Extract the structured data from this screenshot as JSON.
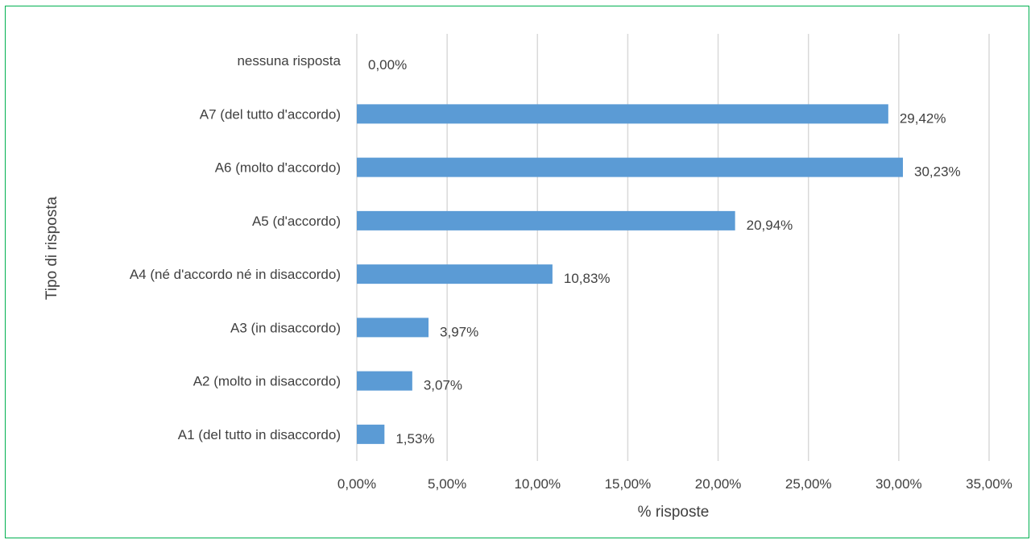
{
  "chart_data": {
    "type": "bar",
    "orientation": "horizontal",
    "categories": [
      "nessuna risposta",
      "A7 (del tutto d'accordo)",
      "A6 (molto d'accordo)",
      "A5 (d'accordo)",
      "A4 (né d'accordo né in disaccordo)",
      "A3 (in disaccordo)",
      "A2 (molto in disaccordo)",
      "A1 (del tutto in disaccordo)"
    ],
    "values": [
      0.0,
      29.42,
      30.23,
      20.94,
      10.83,
      3.97,
      3.07,
      1.53
    ],
    "data_labels": [
      "0,00%",
      "29,42%",
      "30,23%",
      "20,94%",
      "10,83%",
      "3,97%",
      "3,07%",
      "1,53%"
    ],
    "xlabel": "% risposte",
    "ylabel": "Tipo di risposta",
    "xlim": [
      0,
      35
    ],
    "x_ticks": [
      "0,00%",
      "5,00%",
      "10,00%",
      "15,00%",
      "20,00%",
      "25,00%",
      "30,00%",
      "35,00%"
    ],
    "grid": "vertical",
    "legend": "none",
    "colors": {
      "bar": "#5b9bd5",
      "grid": "#d9d9d9",
      "text": "#404040",
      "border": "#00b050"
    }
  }
}
